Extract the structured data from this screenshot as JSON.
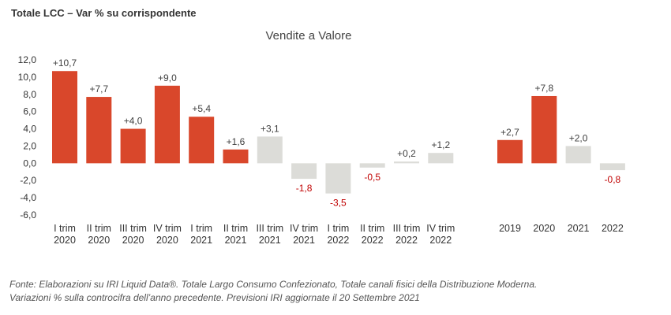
{
  "header": {
    "title": "Totale LCC – Var % su corrispondente"
  },
  "colors": {
    "actual": "#d9472b",
    "forecast": "#dcdcd8",
    "positive_label": "#404040",
    "negative_label": "#c00000",
    "axis_text": "#333333"
  },
  "chart_data": {
    "type": "bar",
    "title": "Vendite a Valore",
    "ylim": [
      -6,
      12
    ],
    "yticks": [
      "12,0",
      "10,0",
      "8,0",
      "6,0",
      "4,0",
      "2,0",
      "0,0",
      "-2,0",
      "-4,0",
      "-6,0"
    ],
    "ytick_values": [
      12,
      10,
      8,
      6,
      4,
      2,
      0,
      -2,
      -4,
      -6
    ],
    "grid": false,
    "groups": [
      {
        "categories": [
          [
            "I trim",
            "2020"
          ],
          [
            "II trim",
            "2020"
          ],
          [
            "III trim",
            "2020"
          ],
          [
            "IV trim",
            "2020"
          ],
          [
            "I trim",
            "2021"
          ],
          [
            "II trim",
            "2021"
          ],
          [
            "III trim",
            "2021"
          ],
          [
            "IV trim",
            "2021"
          ],
          [
            "I trim",
            "2022"
          ],
          [
            "II trim",
            "2022"
          ],
          [
            "III trim",
            "2022"
          ],
          [
            "IV trim",
            "2022"
          ]
        ],
        "values": [
          10.7,
          7.7,
          4.0,
          9.0,
          5.4,
          1.6,
          3.1,
          -1.8,
          -3.5,
          -0.5,
          0.2,
          1.2
        ],
        "labels": [
          "+10,7",
          "+7,7",
          "+4,0",
          "+9,0",
          "+5,4",
          "+1,6",
          "+3,1",
          "-1,8",
          "-3,5",
          "-0,5",
          "+0,2",
          "+1,2"
        ],
        "forecast": [
          false,
          false,
          false,
          false,
          false,
          false,
          true,
          true,
          true,
          true,
          true,
          true
        ]
      },
      {
        "categories": [
          [
            "2019"
          ],
          [
            "2020"
          ],
          [
            "2021"
          ],
          [
            "2022"
          ]
        ],
        "values": [
          2.7,
          7.8,
          2.0,
          -0.8
        ],
        "labels": [
          "+2,7",
          "+7,8",
          "+2,0",
          "-0,8"
        ],
        "forecast": [
          false,
          false,
          true,
          true
        ]
      }
    ]
  },
  "footnotes": [
    "Fonte: Elaborazioni su IRI Liquid Data®. Totale Largo Consumo Confezionato, Totale canali fisici della Distribuzione Moderna.",
    "Variazioni % sulla controcifra dell’anno precedente. Previsioni IRI aggiornate il 20 Settembre 2021"
  ]
}
